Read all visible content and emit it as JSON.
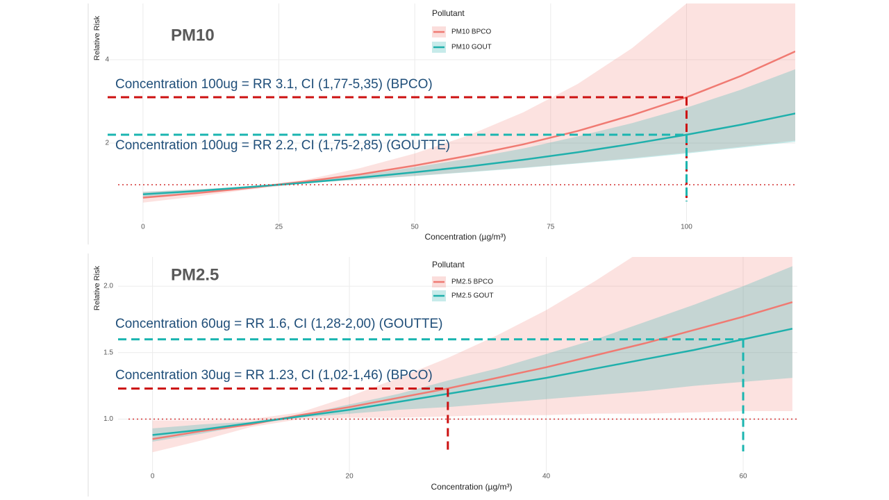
{
  "chart_data": [
    {
      "type": "line",
      "title": "PM10",
      "xlabel": "Concentration (µg/m³)",
      "ylabel": "Relative Risk",
      "legend_title": "Pollutant",
      "legend": "top",
      "x": [
        0,
        10,
        20,
        30,
        40,
        50,
        60,
        70,
        80,
        90,
        100,
        110,
        120
      ],
      "series": [
        {
          "name": "PM10 BPCO",
          "color": "#f07a72",
          "values": [
            0.69,
            0.8,
            0.93,
            1.08,
            1.25,
            1.46,
            1.7,
            1.97,
            2.29,
            2.67,
            3.1,
            3.61,
            4.2
          ],
          "lower": [
            0.57,
            0.72,
            0.89,
            1.04,
            1.12,
            1.21,
            1.31,
            1.41,
            1.52,
            1.64,
            1.77,
            1.91,
            2.06
          ],
          "upper": [
            0.83,
            0.89,
            0.96,
            1.12,
            1.4,
            1.75,
            2.19,
            2.74,
            3.42,
            4.28,
            5.35,
            6.69,
            8.36
          ]
        },
        {
          "name": "PM10 GOUT",
          "color": "#1fb0ac",
          "values": [
            0.77,
            0.85,
            0.95,
            1.05,
            1.17,
            1.3,
            1.44,
            1.6,
            1.78,
            1.98,
            2.2,
            2.44,
            2.71
          ],
          "lower": [
            0.71,
            0.81,
            0.93,
            1.04,
            1.12,
            1.21,
            1.3,
            1.4,
            1.51,
            1.62,
            1.75,
            1.89,
            2.03
          ],
          "upper": [
            0.83,
            0.89,
            0.96,
            1.07,
            1.23,
            1.42,
            1.63,
            1.87,
            2.16,
            2.48,
            2.85,
            3.28,
            3.77
          ]
        }
      ],
      "xlim": [
        -6.5,
        120
      ],
      "xticks": [
        0,
        25,
        50,
        75,
        100
      ],
      "ylim": [
        0.1,
        5.35
      ],
      "yticks": [
        2,
        4
      ],
      "grid": true,
      "hline": 1,
      "annotations": [
        {
          "text": "Concentration 100ug = RR 3.1, CI (1,77-5,35)  (BPCO)",
          "x": 100,
          "y": 3.1,
          "color": "#cc1111"
        },
        {
          "text": "Concentration 100ug = RR 2.2, CI (1,75-2,85)  (GOUTTE)",
          "x": 100,
          "y": 2.2,
          "color": "#1bb5b0"
        }
      ]
    },
    {
      "type": "line",
      "title": "PM2.5",
      "xlabel": "Concentration (µg/m³)",
      "ylabel": "Relative Risk",
      "legend_title": "Pollutant",
      "legend": "top",
      "x": [
        0,
        5,
        10,
        15,
        20,
        25,
        30,
        35,
        40,
        45,
        50,
        55,
        60,
        65
      ],
      "series": [
        {
          "name": "PM2.5 BPCO",
          "color": "#f07a72",
          "values": [
            0.85,
            0.91,
            0.96,
            1.03,
            1.09,
            1.16,
            1.23,
            1.31,
            1.39,
            1.48,
            1.57,
            1.67,
            1.77,
            1.88
          ],
          "lower": [
            0.75,
            0.84,
            0.94,
            1.0,
            1.01,
            1.01,
            1.02,
            1.03,
            1.03,
            1.04,
            1.04,
            1.05,
            1.06,
            1.06
          ],
          "upper": [
            0.99,
            0.99,
            1.0,
            1.05,
            1.17,
            1.31,
            1.46,
            1.63,
            1.82,
            2.04,
            2.28,
            2.55,
            2.85,
            3.18
          ]
        },
        {
          "name": "PM2.5 GOUT",
          "color": "#1fb0ac",
          "values": [
            0.88,
            0.92,
            0.97,
            1.02,
            1.07,
            1.13,
            1.19,
            1.25,
            1.31,
            1.38,
            1.45,
            1.52,
            1.6,
            1.68
          ],
          "lower": [
            0.83,
            0.89,
            0.96,
            1.01,
            1.04,
            1.07,
            1.09,
            1.12,
            1.15,
            1.18,
            1.21,
            1.25,
            1.28,
            1.31
          ],
          "upper": [
            0.93,
            0.96,
            0.98,
            1.03,
            1.11,
            1.19,
            1.29,
            1.38,
            1.49,
            1.6,
            1.73,
            1.86,
            2.0,
            2.15
          ]
        }
      ],
      "xlim": [
        -3.5,
        65.5
      ],
      "xticks": [
        0,
        20,
        40,
        60
      ],
      "ylim": [
        0.6,
        2.22
      ],
      "yticks": [
        {
          "value": 1,
          "label": "1.0"
        },
        {
          "value": 1.5,
          "label": "1.5"
        },
        {
          "value": 2,
          "label": "2.0"
        }
      ],
      "grid": true,
      "hline": 1,
      "annotations": [
        {
          "text": "Concentration 60ug = RR 1.6, CI (1,28-2,00)  (GOUTTE)",
          "x": 60,
          "y": 1.6,
          "color": "#1bb5b0"
        },
        {
          "text": "Concentration 30ug = RR 1.23, CI (1,02-1,46) (BPCO)",
          "x": 30,
          "y": 1.23,
          "color": "#cc1111"
        }
      ]
    }
  ]
}
